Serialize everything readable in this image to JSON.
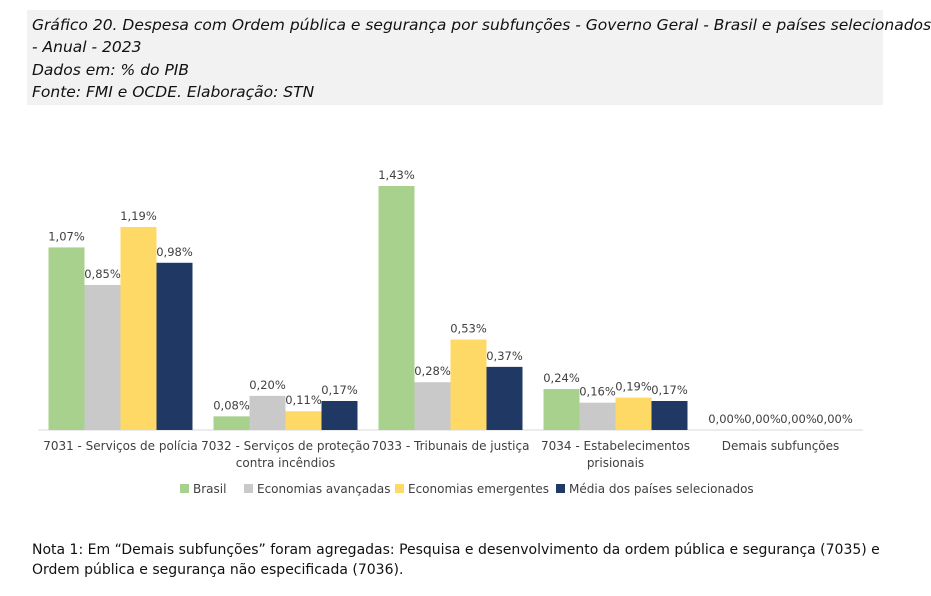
{
  "header": {
    "title_line1": "Gráfico 20. Despesa com Ordem pública e segurança por subfunções - Governo Geral - Brasil e países selecionados",
    "title_line2": "- Anual - 2023",
    "units": "Dados em: % do PIB",
    "source": "Fonte: FMI e OCDE. Elaboração: STN"
  },
  "note": "Nota 1:  Em “Demais subfunções” foram agregadas: Pesquisa e desenvolvimento da ordem pública e segurança (7035) e Ordem pública e segurança não especificada (7036).",
  "colors": {
    "Brasil": "#a9d18e",
    "Economias avançadas": "#c9c9c9",
    "Economias emergentes": "#ffd966",
    "Média dos países selecionados": "#203864"
  },
  "chart_data": {
    "type": "bar",
    "categories": [
      [
        "7031 - Serviços de polícia"
      ],
      [
        "7032 - Serviços de proteção",
        "contra incêndios"
      ],
      [
        "7033 - Tribunais de justiça"
      ],
      [
        "7034 - Estabelecimentos",
        "prisionais"
      ],
      [
        "Demais subfunções"
      ]
    ],
    "series": [
      {
        "name": "Brasil",
        "values": [
          1.07,
          0.08,
          1.43,
          0.24,
          0.0
        ],
        "labels": [
          "1,07%",
          "0,08%",
          "1,43%",
          "0,24%",
          "0,00%"
        ]
      },
      {
        "name": "Economias avançadas",
        "values": [
          0.85,
          0.2,
          0.28,
          0.16,
          0.0
        ],
        "labels": [
          "0,85%",
          "0,20%",
          "0,28%",
          "0,16%",
          "0,00%"
        ]
      },
      {
        "name": "Economias emergentes",
        "values": [
          1.19,
          0.11,
          0.53,
          0.19,
          0.0
        ],
        "labels": [
          "1,19%",
          "0,11%",
          "0,53%",
          "0,19%",
          "0,00%"
        ]
      },
      {
        "name": "Média dos países selecionados",
        "values": [
          0.98,
          0.17,
          0.37,
          0.17,
          0.0
        ],
        "labels": [
          "0,98%",
          "0,17%",
          "0,37%",
          "0,17%",
          "0,00%"
        ]
      }
    ],
    "ylim": [
      0,
      1.43
    ],
    "grid": false,
    "legend_position": "bottom"
  }
}
